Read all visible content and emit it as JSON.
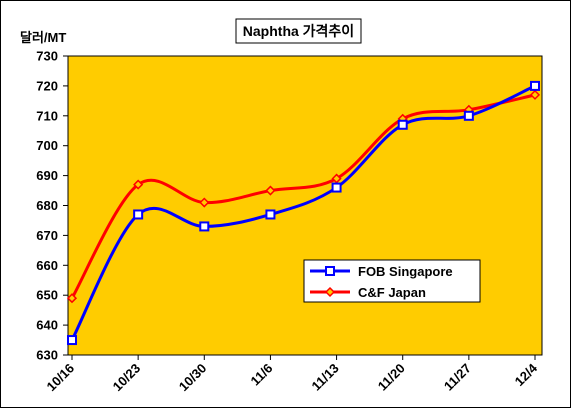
{
  "chart_data": {
    "type": "line",
    "title": "Naphtha 가격추이",
    "ylabel": "달러/MT",
    "xlabel": "",
    "categories": [
      "10/16",
      "10/23",
      "10/30",
      "11/6",
      "11/13",
      "11/20",
      "11/27",
      "12/4"
    ],
    "ylim": [
      630,
      730
    ],
    "ytick_step": 10,
    "grid": false,
    "plot_background": "#FFCC00",
    "legend_position": "lower-right (inside plot)",
    "series": [
      {
        "name": "FOB Singapore",
        "values": [
          635,
          677,
          673,
          677,
          686,
          707,
          710,
          720
        ],
        "color": "#0000FF",
        "marker": "square-hollow"
      },
      {
        "name": "C&F Japan",
        "values": [
          649,
          687,
          681,
          685,
          689,
          709,
          712,
          717
        ],
        "color": "#FF0000",
        "marker": "diamond"
      }
    ]
  }
}
